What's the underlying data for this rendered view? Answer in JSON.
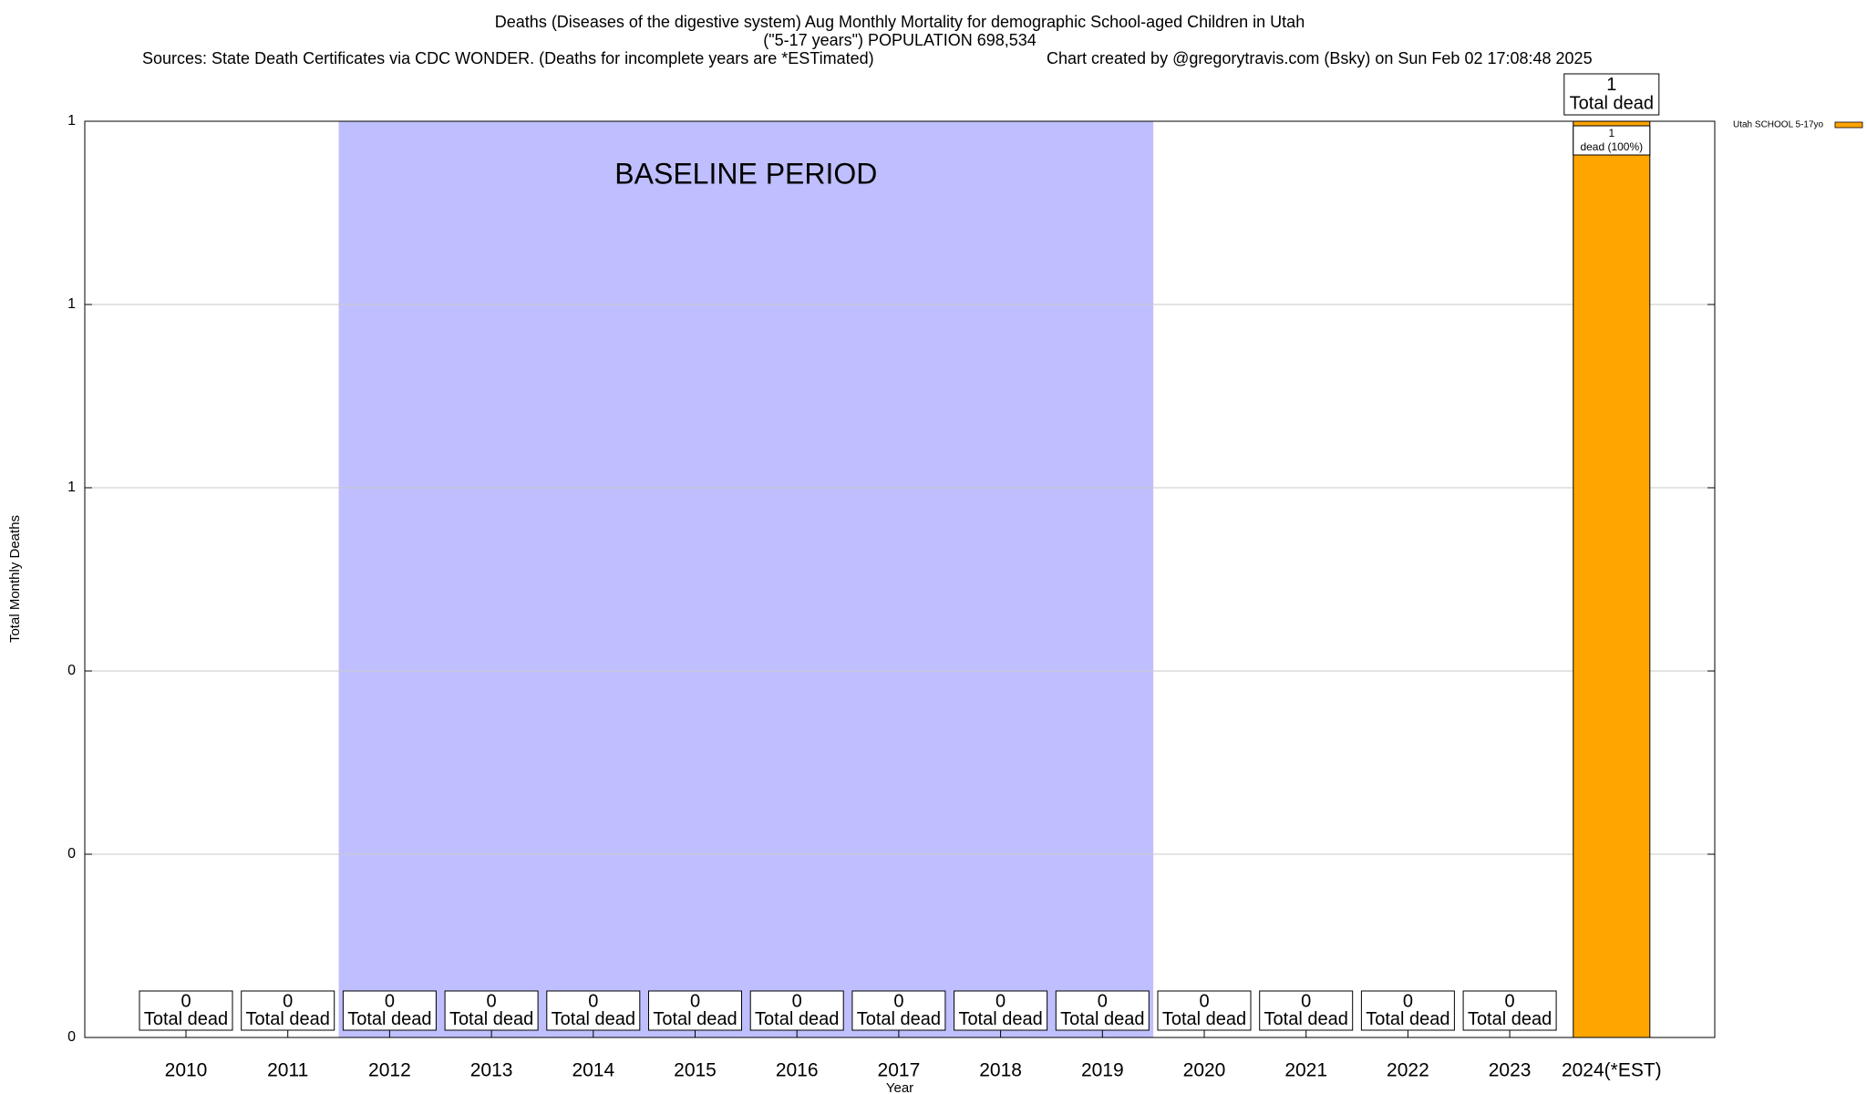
{
  "chart_data": {
    "type": "bar",
    "title": "Deaths (Diseases of the digestive system) Aug Monthly Mortality for demographic School-aged Children in Utah",
    "subtitle": "(\"5-17 years\") POPULATION 698,534",
    "source": "Sources: State Death Certificates via CDC WONDER. (Deaths for incomplete years are *ESTimated)",
    "credit": "Chart created by @gregorytravis.com (Bsky) on Sun Feb 02 17:08:48 2025",
    "x_label": "Year",
    "y_label": "Total Monthly Deaths",
    "categories": [
      "2010",
      "2011",
      "2012",
      "2013",
      "2014",
      "2015",
      "2016",
      "2017",
      "2018",
      "2019",
      "2020",
      "2021",
      "2022",
      "2023",
      "2024(*EST)"
    ],
    "series": [
      {
        "name": "Utah SCHOOL 5-17yo",
        "color": "#ffa500",
        "values": [
          0,
          0,
          0,
          0,
          0,
          0,
          0,
          0,
          0,
          0,
          0,
          0,
          0,
          0,
          1
        ]
      }
    ],
    "total_label": "Total dead",
    "segment_label": "dead (100%)",
    "baseline": {
      "label": "BASELINE PERIOD",
      "start": "2012",
      "end": "2019",
      "color": "#bfbfff"
    },
    "ylim": [
      0,
      1
    ],
    "yticks": [
      {
        "value": 0,
        "label": "0"
      },
      {
        "value": 0.2,
        "label": "0"
      },
      {
        "value": 0.4,
        "label": "0"
      },
      {
        "value": 0.6,
        "label": "1"
      },
      {
        "value": 0.8,
        "label": "1"
      },
      {
        "value": 1,
        "label": "1"
      }
    ],
    "grid": true,
    "legend": "top-right"
  }
}
